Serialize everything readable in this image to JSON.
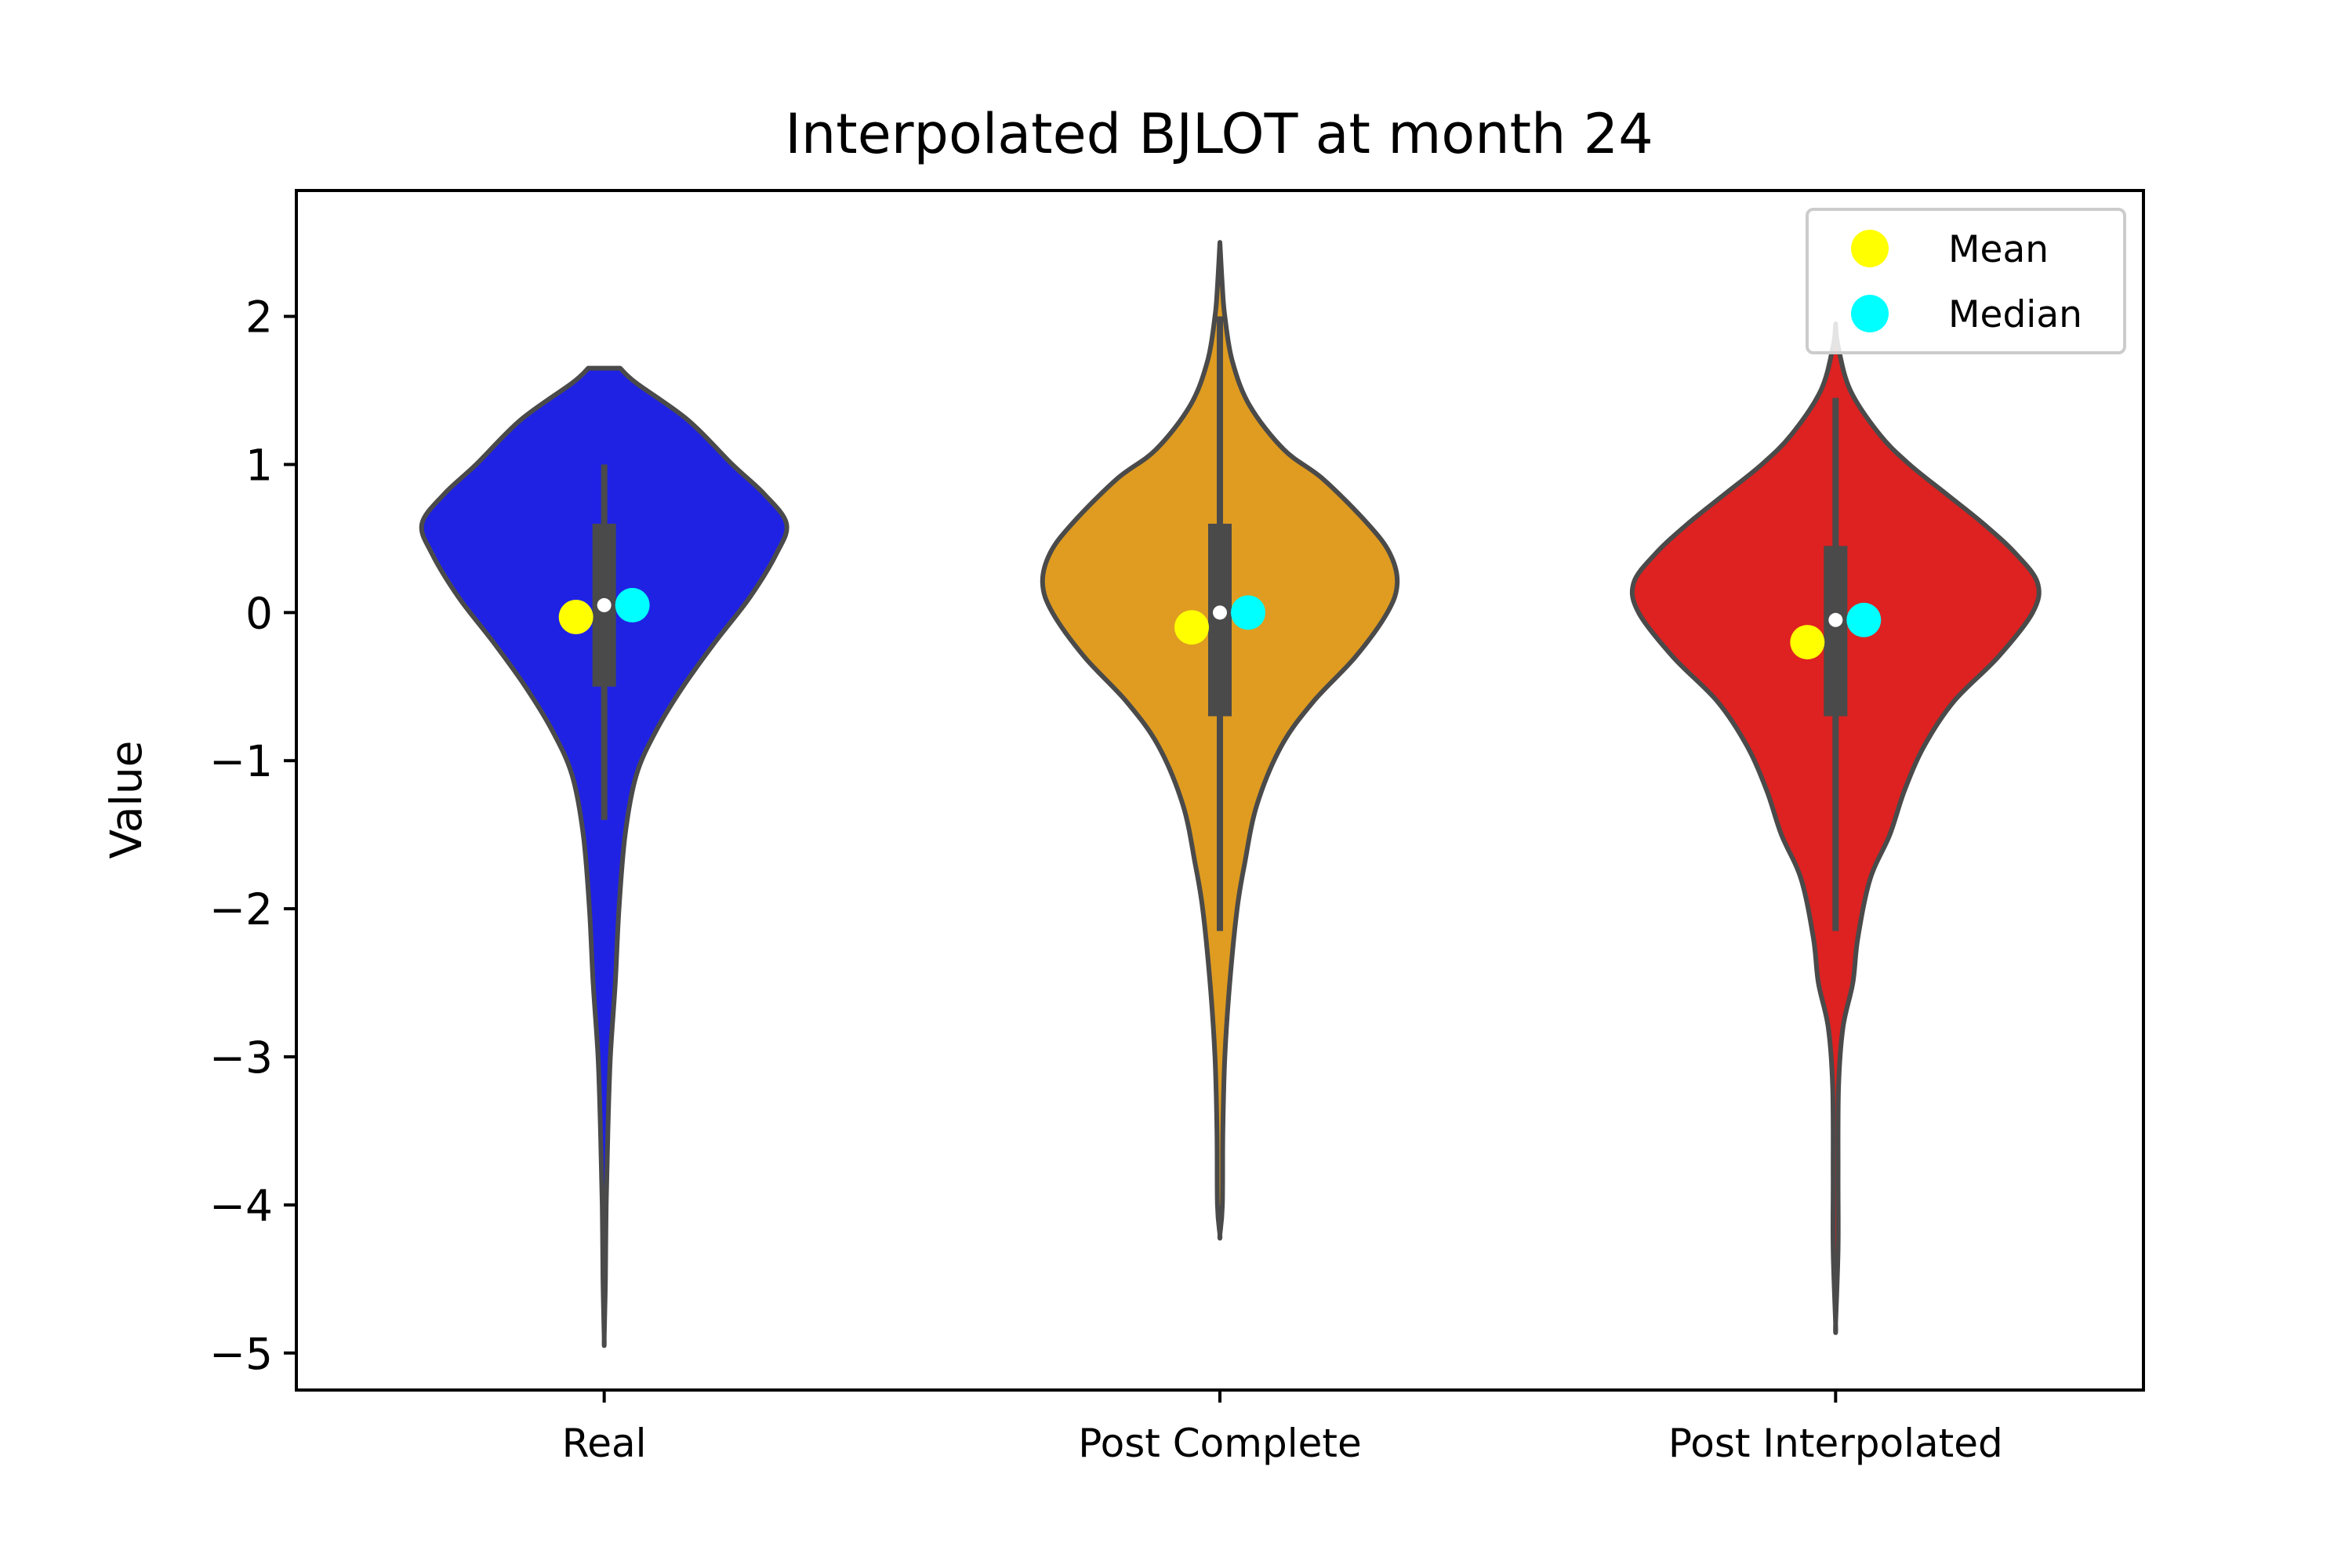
{
  "chart_data": {
    "type": "violin",
    "title": "Interpolated BJLOT at month 24",
    "xlabel": "",
    "ylabel": "Value",
    "ylim": [
      -5.25,
      2.85
    ],
    "yticks": [
      2,
      1,
      0,
      -1,
      -2,
      -3,
      -4,
      -5
    ],
    "ytick_labels": [
      "2",
      "1",
      "0",
      "−1",
      "−2",
      "−3",
      "−4",
      "−5"
    ],
    "categories": [
      "Real",
      "Post Complete",
      "Post Interpolated"
    ],
    "colors": [
      "#1f22e3",
      "#df9c21",
      "#de2121"
    ],
    "outline_color": "#4a4a4a",
    "violins": [
      {
        "name": "Real",
        "min": -4.9,
        "q1": -0.5,
        "median": 0.05,
        "q3": 0.6,
        "max": 1.65,
        "whisker_low": -1.4,
        "whisker_high": 1.0,
        "mean_marker": -0.03,
        "median_marker": 0.05,
        "profile": [
          [
            1.65,
            0.065
          ],
          [
            1.55,
            0.13
          ],
          [
            1.3,
            0.34
          ],
          [
            1.0,
            0.52
          ],
          [
            0.8,
            0.65
          ],
          [
            0.6,
            0.74
          ],
          [
            0.4,
            0.7
          ],
          [
            0.1,
            0.59
          ],
          [
            -0.2,
            0.45
          ],
          [
            -0.5,
            0.32
          ],
          [
            -0.8,
            0.21
          ],
          [
            -1.1,
            0.13
          ],
          [
            -1.5,
            0.085
          ],
          [
            -2.0,
            0.06
          ],
          [
            -2.5,
            0.045
          ],
          [
            -3.0,
            0.025
          ],
          [
            -3.5,
            0.015
          ],
          [
            -4.0,
            0.008
          ],
          [
            -4.5,
            0.005
          ],
          [
            -4.9,
            0.0
          ]
        ]
      },
      {
        "name": "Post Complete",
        "min": -4.2,
        "q1": -0.7,
        "median": 0.0,
        "q3": 0.6,
        "max": 2.5,
        "whisker_low": -2.15,
        "whisker_high": 2.0,
        "mean_marker": -0.1,
        "median_marker": -0.0,
        "profile": [
          [
            2.5,
            0.0
          ],
          [
            2.2,
            0.01
          ],
          [
            2.0,
            0.02
          ],
          [
            1.7,
            0.05
          ],
          [
            1.4,
            0.12
          ],
          [
            1.1,
            0.26
          ],
          [
            0.9,
            0.42
          ],
          [
            0.6,
            0.6
          ],
          [
            0.4,
            0.69
          ],
          [
            0.2,
            0.72
          ],
          [
            0.0,
            0.68
          ],
          [
            -0.3,
            0.55
          ],
          [
            -0.6,
            0.38
          ],
          [
            -0.9,
            0.25
          ],
          [
            -1.3,
            0.15
          ],
          [
            -1.7,
            0.1
          ],
          [
            -2.0,
            0.07
          ],
          [
            -2.5,
            0.04
          ],
          [
            -3.0,
            0.02
          ],
          [
            -3.5,
            0.012
          ],
          [
            -4.0,
            0.01
          ],
          [
            -4.2,
            0.0
          ]
        ]
      },
      {
        "name": "Post Interpolated",
        "min": -4.8,
        "q1": -0.7,
        "median": -0.05,
        "q3": 0.45,
        "max": 1.95,
        "whisker_low": -2.15,
        "whisker_high": 1.45,
        "mean_marker": -0.2,
        "median_marker": -0.05,
        "profile": [
          [
            1.95,
            0.0
          ],
          [
            1.8,
            0.01
          ],
          [
            1.5,
            0.06
          ],
          [
            1.2,
            0.18
          ],
          [
            1.0,
            0.3
          ],
          [
            0.8,
            0.45
          ],
          [
            0.6,
            0.6
          ],
          [
            0.4,
            0.73
          ],
          [
            0.2,
            0.82
          ],
          [
            0.0,
            0.8
          ],
          [
            -0.3,
            0.66
          ],
          [
            -0.6,
            0.48
          ],
          [
            -0.9,
            0.36
          ],
          [
            -1.2,
            0.28
          ],
          [
            -1.5,
            0.22
          ],
          [
            -1.8,
            0.14
          ],
          [
            -2.2,
            0.09
          ],
          [
            -2.5,
            0.07
          ],
          [
            -2.8,
            0.03
          ],
          [
            -3.2,
            0.012
          ],
          [
            -3.8,
            0.01
          ],
          [
            -4.3,
            0.01
          ],
          [
            -4.8,
            0.0
          ]
        ]
      }
    ],
    "legend": {
      "position": "top-right",
      "entries": [
        {
          "label": "Mean",
          "color": "#ffff00"
        },
        {
          "label": "Median",
          "color": "#00ffff"
        }
      ]
    }
  }
}
